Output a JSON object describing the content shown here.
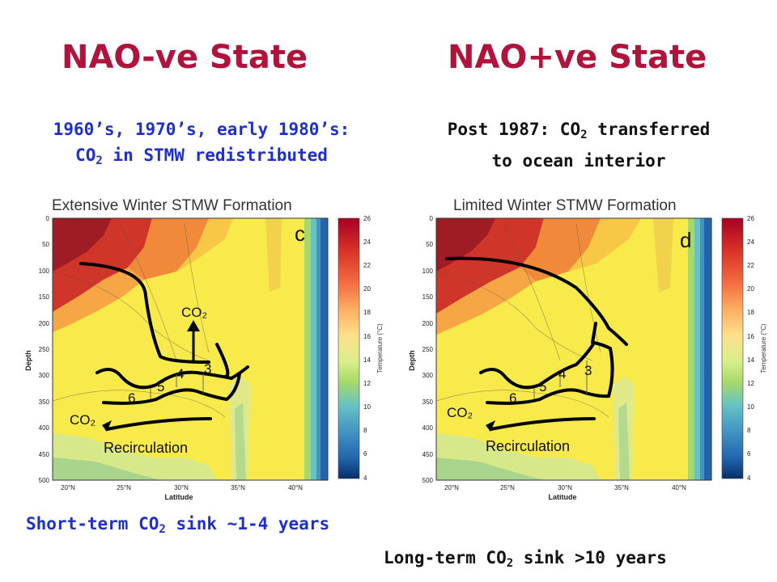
{
  "titles": {
    "left": "NAO-ve State",
    "right": "NAO+ve State"
  },
  "captions": {
    "left_line1": "1960’s, 1970’s, early 1980’s:",
    "left_line2_pre": "CO",
    "left_line2_sub": "2",
    "left_line2_post": " in STMW redistributed",
    "right_line1_pre": "Post 1987: CO",
    "right_line1_sub": "2",
    "right_line1_post": " transferred",
    "right_line2": "to ocean interior"
  },
  "panels": {
    "left": {
      "heading": "Extensive Winter STMW Formation",
      "letter": "c",
      "co2_up": "CO₂",
      "co2_down": "CO₂",
      "numbers": [
        "6",
        "5",
        "4",
        "3"
      ],
      "recirculation": "Recirculation"
    },
    "right": {
      "heading": "Limited Winter STMW Formation",
      "letter": "d",
      "co2_down": "CO₂",
      "numbers": [
        "6",
        "5",
        "4",
        "3"
      ],
      "recirculation": "Recirculation"
    },
    "axes": {
      "ylabel": "Depth",
      "xlabel": "Latitude",
      "depth_ticks": [
        "0",
        "50",
        "100",
        "150",
        "200",
        "250",
        "300",
        "350",
        "400",
        "450",
        "500"
      ],
      "lat_ticks": [
        "20°N",
        "25°N",
        "30°N",
        "35°N",
        "40°N"
      ],
      "colorbar_ticks": [
        "26",
        "24",
        "22",
        "20",
        "18",
        "16",
        "14",
        "12",
        "10",
        "8",
        "6",
        "4"
      ],
      "colorbar_label": "Temperature (°C)"
    }
  },
  "bottom": {
    "left_pre": "Short-term CO",
    "left_sub": "2",
    "left_post": " sink ~1-4 years",
    "right_pre": "Long-term CO",
    "right_sub": "2",
    "right_post": " sink >10 years"
  },
  "colors": {
    "title": "#b0143c",
    "blue_text": "#1f2fcf",
    "black_text": "#111111"
  }
}
